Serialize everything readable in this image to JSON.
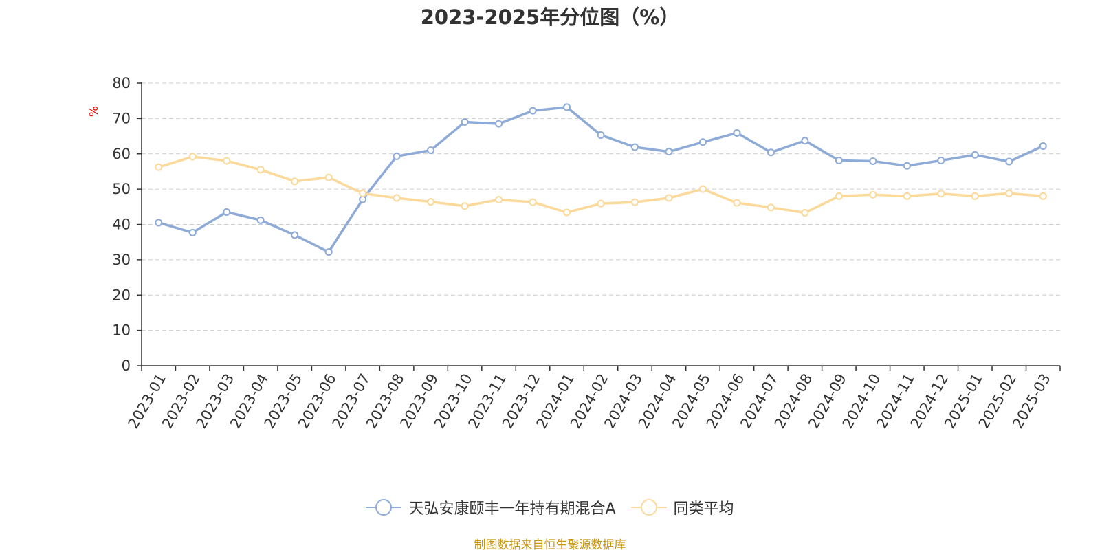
{
  "chart_data": {
    "type": "line",
    "title": "2023-2025年分位图（%）",
    "ylabel": "%",
    "ylim": [
      0,
      80
    ],
    "yticks": [
      0,
      10,
      20,
      30,
      40,
      50,
      60,
      70,
      80
    ],
    "grid": true,
    "legend_position": "bottom",
    "categories": [
      "2023-01",
      "2023-02",
      "2023-03",
      "2023-04",
      "2023-05",
      "2023-06",
      "2023-07",
      "2023-08",
      "2023-09",
      "2023-10",
      "2023-11",
      "2023-12",
      "2024-01",
      "2024-02",
      "2024-03",
      "2024-04",
      "2024-05",
      "2024-06",
      "2024-07",
      "2024-08",
      "2024-09",
      "2024-10",
      "2024-11",
      "2024-12",
      "2025-01",
      "2025-02",
      "2025-03"
    ],
    "series": [
      {
        "name": "天弘安康颐丰一年持有期混合A",
        "color": "#8eabd8",
        "values": [
          40.5,
          37.7,
          43.5,
          41.2,
          37.0,
          32.2,
          47.1,
          59.3,
          61.0,
          69.0,
          68.5,
          72.2,
          73.2,
          65.3,
          61.9,
          60.6,
          63.3,
          65.9,
          60.4,
          63.7,
          58.1,
          57.9,
          56.6,
          58.1,
          59.7,
          57.8,
          62.2
        ]
      },
      {
        "name": "同类平均",
        "color": "#fbd99a",
        "values": [
          56.2,
          59.2,
          58.0,
          55.5,
          52.2,
          53.3,
          48.8,
          47.5,
          46.4,
          45.2,
          47.0,
          46.3,
          43.4,
          45.9,
          46.3,
          47.5,
          50.0,
          46.1,
          44.8,
          43.3,
          48.0,
          48.4,
          48.0,
          48.7,
          48.0,
          48.8,
          48.0
        ]
      }
    ]
  },
  "source_text": "制图数据来自恒生聚源数据库",
  "colors": {
    "axis": "#333333",
    "grid": "#cccccc",
    "unit": "#ff0000",
    "source": "#c8950f"
  }
}
